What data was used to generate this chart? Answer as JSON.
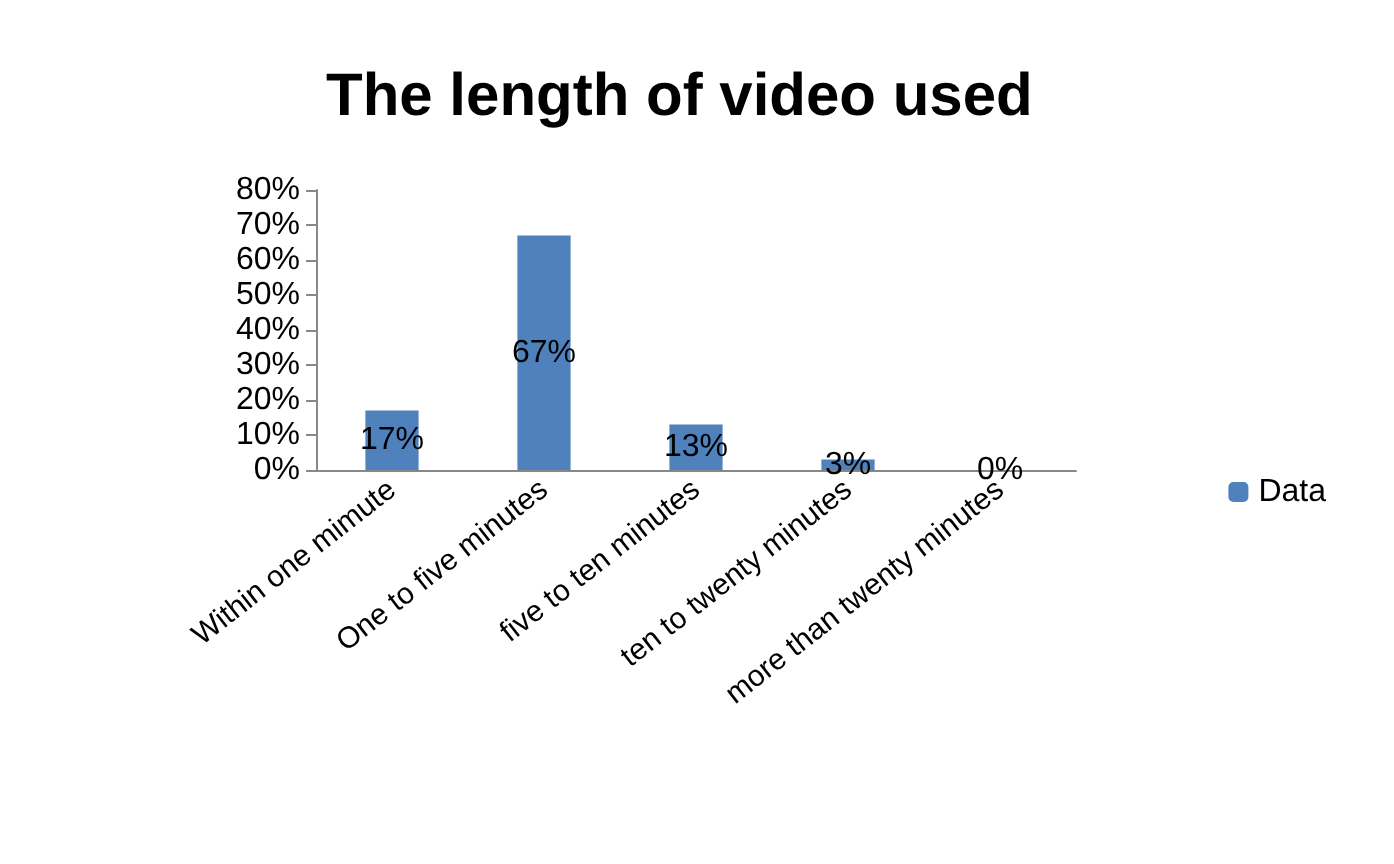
{
  "chart_data": {
    "type": "bar",
    "title": "The length of video used",
    "categories": [
      "Within one mimute",
      "One to five minutes",
      "five to ten minutes",
      "ten to twenty minutes",
      "more than twenty minutes"
    ],
    "series": [
      {
        "name": "Data",
        "color": "#4f81bd",
        "values": [
          17,
          67,
          13,
          3,
          0
        ],
        "value_labels": [
          "17%",
          "67%",
          "13%",
          "3%",
          "0%"
        ]
      }
    ],
    "ylim": [
      0,
      80
    ],
    "yticks": [
      {
        "value": 0,
        "label": "0%"
      },
      {
        "value": 10,
        "label": "10%"
      },
      {
        "value": 20,
        "label": "20%"
      },
      {
        "value": 30,
        "label": "30%"
      },
      {
        "value": 40,
        "label": "40%"
      },
      {
        "value": 50,
        "label": "50%"
      },
      {
        "value": 60,
        "label": "60%"
      },
      {
        "value": 70,
        "label": "70%"
      },
      {
        "value": 80,
        "label": "80%"
      }
    ],
    "grid": false,
    "legend": "right"
  }
}
